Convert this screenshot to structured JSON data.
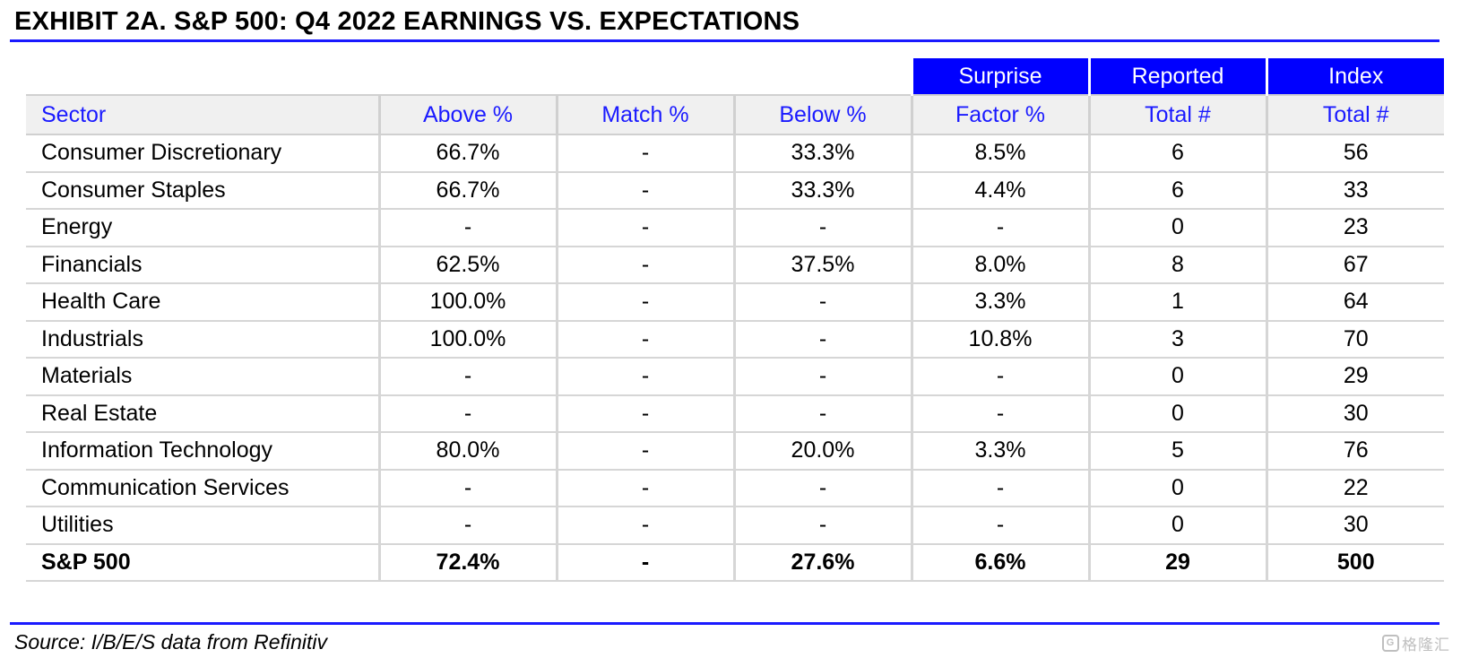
{
  "title": "EXHIBIT 2A.  S&P 500: Q4 2022 EARNINGS VS. EXPECTATIONS",
  "super_headers": [
    "Surprise",
    "Reported",
    "Index"
  ],
  "columns": [
    "Sector",
    "Above %",
    "Match %",
    "Below %",
    "Factor %",
    "Total #",
    "Total #"
  ],
  "rows": [
    [
      "Consumer Discretionary",
      "66.7%",
      "-",
      "33.3%",
      "8.5%",
      "6",
      "56"
    ],
    [
      "Consumer Staples",
      "66.7%",
      "-",
      "33.3%",
      "4.4%",
      "6",
      "33"
    ],
    [
      "Energy",
      "-",
      "-",
      "-",
      "-",
      "0",
      "23"
    ],
    [
      "Financials",
      "62.5%",
      "-",
      "37.5%",
      "8.0%",
      "8",
      "67"
    ],
    [
      "Health Care",
      "100.0%",
      "-",
      "-",
      "3.3%",
      "1",
      "64"
    ],
    [
      "Industrials",
      "100.0%",
      "-",
      "-",
      "10.8%",
      "3",
      "70"
    ],
    [
      "Materials",
      "-",
      "-",
      "-",
      "-",
      "0",
      "29"
    ],
    [
      "Real Estate",
      "-",
      "-",
      "-",
      "-",
      "0",
      "30"
    ],
    [
      "Information Technology",
      "80.0%",
      "-",
      "20.0%",
      "3.3%",
      "5",
      "76"
    ],
    [
      "Communication Services",
      "-",
      "-",
      "-",
      "-",
      "0",
      "22"
    ],
    [
      "Utilities",
      "-",
      "-",
      "-",
      "-",
      "0",
      "30"
    ],
    [
      "S&P 500",
      "72.4%",
      "-",
      "27.6%",
      "6.6%",
      "29",
      "500"
    ]
  ],
  "source": "Source: I/B/E/S data from Refinitiv",
  "watermark": "格隆汇",
  "colors": {
    "accent": "#0000ff",
    "header_text": "#1a1aff",
    "header_bg": "#f0f0f0",
    "grid": "#d6d6d6"
  }
}
